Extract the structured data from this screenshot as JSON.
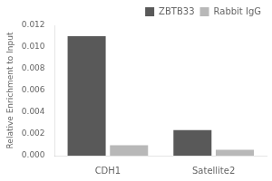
{
  "chart_data": {
    "type": "bar",
    "categories": [
      "CDH1",
      "Satellite2"
    ],
    "series": [
      {
        "name": "ZBTB33",
        "color": "#595959",
        "values": [
          0.011,
          0.00235
        ]
      },
      {
        "name": "Rabbit IgG",
        "color": "#b8b8b8",
        "values": [
          0.00095,
          0.00055
        ]
      }
    ],
    "ylabel": "Relative Enrichment to Input",
    "ylim": [
      0,
      0.012
    ],
    "yticks": [
      {
        "value": 0.0,
        "label": "0.000"
      },
      {
        "value": 0.002,
        "label": "0.002"
      },
      {
        "value": 0.004,
        "label": "0.004"
      },
      {
        "value": 0.006,
        "label": "0.006"
      },
      {
        "value": 0.008,
        "label": "0.008"
      },
      {
        "value": 0.01,
        "label": "0.010"
      },
      {
        "value": 0.012,
        "label": "0.012"
      }
    ],
    "legend": "upper right",
    "grid": false
  }
}
